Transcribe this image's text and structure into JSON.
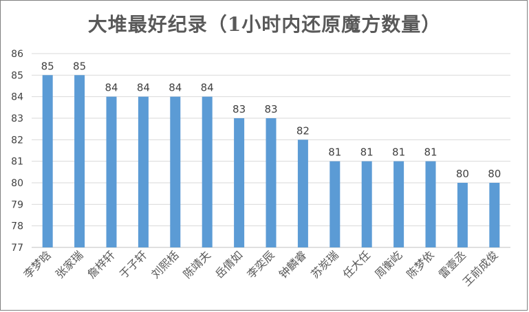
{
  "chart_data": {
    "type": "bar",
    "title": "大堆最好纪录（1小时内还原魔方数量）",
    "xlabel": "",
    "ylabel": "",
    "ylim": [
      77,
      86
    ],
    "yticks": [
      77,
      78,
      79,
      80,
      81,
      82,
      83,
      84,
      85,
      86
    ],
    "grid": true,
    "legend": "none",
    "bar_color": "#5b9bd5",
    "categories": [
      "李梦晗",
      "张家瑞",
      "詹梓轩",
      "于子轩",
      "刘熙栝",
      "陈靖夫",
      "岳倩如",
      "李奕辰",
      "钟麟睿",
      "苏炭瑞",
      "任大任",
      "周衡屹",
      "陈梦依",
      "雷壹丞",
      "王前成俊"
    ],
    "values": [
      85,
      85,
      84,
      84,
      84,
      84,
      83,
      83,
      82,
      81,
      81,
      81,
      81,
      80,
      80
    ]
  }
}
